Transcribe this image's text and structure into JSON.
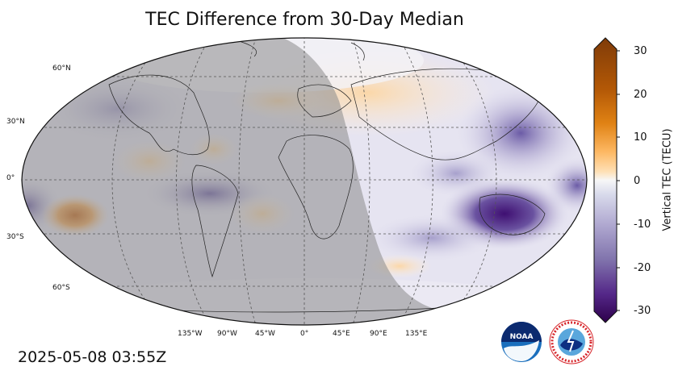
{
  "title": "TEC Difference from 30-Day Median",
  "timestamp": "2025-05-08 03:55Z",
  "map": {
    "projection": "Robinson",
    "lat_labels": [
      "60°N",
      "30°N",
      "0°",
      "30°S",
      "60°S"
    ],
    "lon_labels": [
      "135°W",
      "90°W",
      "45°W",
      "0°",
      "45°E",
      "90°E",
      "135°E"
    ],
    "night_shading": "day-night terminator overlay (western hemisphere in darkness)"
  },
  "colorbar": {
    "label": "Vertical TEC (TECU)",
    "ticks": [
      "30",
      "20",
      "10",
      "0",
      "-10",
      "-20",
      "-30"
    ],
    "range": [
      -30,
      30
    ],
    "colormap": "PuOr_r (purple negative, orange positive)",
    "colors": {
      "max": "#7f3b08",
      "high": "#e08214",
      "mid_pos": "#fdb863",
      "zero": "#f7f7f7",
      "mid_neg": "#b2abd2",
      "low": "#8073ac",
      "min": "#2d004b"
    }
  },
  "logos": {
    "noaa_text": "NOAA",
    "nws_text": "NATIONAL WEATHER SERVICE"
  }
}
